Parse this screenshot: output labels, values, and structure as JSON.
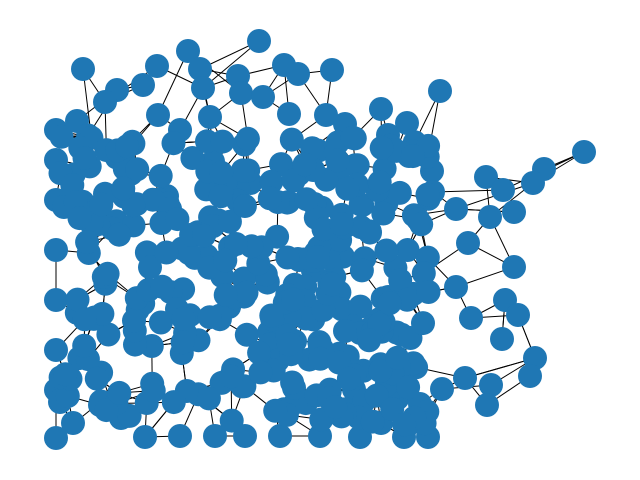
{
  "diagram": {
    "type": "network-graph",
    "node_color": "#1f77b4",
    "edge_color": "#000000",
    "background_color": "#ffffff",
    "node_count": 420,
    "seed": 7
  }
}
